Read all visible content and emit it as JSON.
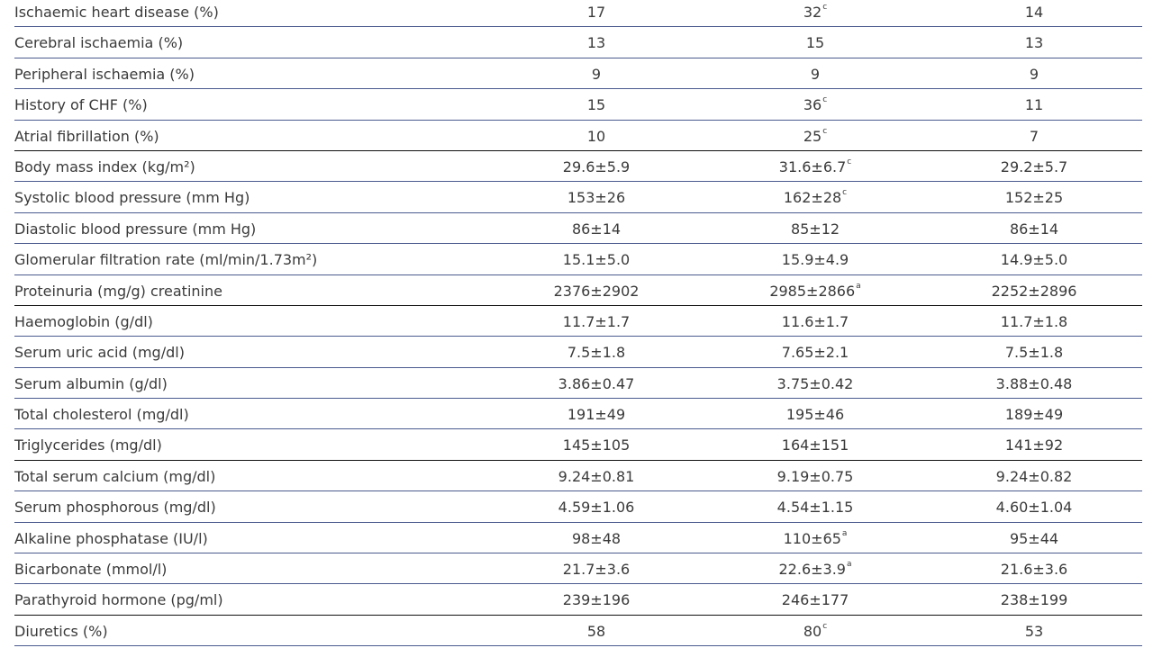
{
  "table": {
    "rows": [
      {
        "label": "Ischaemic heart disease (%)",
        "values": [
          {
            "v": "17"
          },
          {
            "v": "32",
            "sup": "c"
          },
          {
            "v": "14"
          }
        ]
      },
      {
        "label": "Cerebral ischaemia (%)",
        "values": [
          {
            "v": "13"
          },
          {
            "v": "15"
          },
          {
            "v": "13"
          }
        ]
      },
      {
        "label": "Peripheral ischaemia (%)",
        "values": [
          {
            "v": "9"
          },
          {
            "v": "9"
          },
          {
            "v": "9"
          }
        ]
      },
      {
        "label": "History of CHF (%)",
        "values": [
          {
            "v": "15"
          },
          {
            "v": "36",
            "sup": "c"
          },
          {
            "v": "11"
          }
        ]
      },
      {
        "label": "Atrial fibrillation (%)",
        "values": [
          {
            "v": "10"
          },
          {
            "v": "25",
            "sup": "c"
          },
          {
            "v": "7"
          }
        ],
        "dark_rule": true
      },
      {
        "label": "Body mass index (kg/m²)",
        "values": [
          {
            "v": "29.6±5.9"
          },
          {
            "v": "31.6±6.7",
            "sup": "c"
          },
          {
            "v": "29.2±5.7"
          }
        ]
      },
      {
        "label": "Systolic blood pressure (mm Hg)",
        "values": [
          {
            "v": "153±26"
          },
          {
            "v": "162±28",
            "sup": "c"
          },
          {
            "v": "152±25"
          }
        ]
      },
      {
        "label": "Diastolic blood pressure (mm Hg)",
        "values": [
          {
            "v": "86±14"
          },
          {
            "v": "85±12"
          },
          {
            "v": "86±14"
          }
        ]
      },
      {
        "label": "Glomerular filtration rate (ml/min/1.73m²)",
        "values": [
          {
            "v": "15.1±5.0"
          },
          {
            "v": "15.9±4.9"
          },
          {
            "v": "14.9±5.0"
          }
        ]
      },
      {
        "label": "Proteinuria (mg/g) creatinine",
        "values": [
          {
            "v": "2376±2902"
          },
          {
            "v": "2985±2866",
            "sup": "a"
          },
          {
            "v": "2252±2896"
          }
        ],
        "dark_rule": true
      },
      {
        "label": "Haemoglobin (g/dl)",
        "values": [
          {
            "v": "11.7±1.7"
          },
          {
            "v": "11.6±1.7"
          },
          {
            "v": "11.7±1.8"
          }
        ]
      },
      {
        "label": "Serum uric acid (mg/dl)",
        "values": [
          {
            "v": "7.5±1.8"
          },
          {
            "v": "7.65±2.1"
          },
          {
            "v": "7.5±1.8"
          }
        ]
      },
      {
        "label": "Serum albumin (g/dl)",
        "values": [
          {
            "v": "3.86±0.47"
          },
          {
            "v": "3.75±0.42"
          },
          {
            "v": "3.88±0.48"
          }
        ]
      },
      {
        "label": "Total cholesterol (mg/dl)",
        "values": [
          {
            "v": "191±49"
          },
          {
            "v": "195±46"
          },
          {
            "v": "189±49"
          }
        ]
      },
      {
        "label": "Triglycerides (mg/dl)",
        "values": [
          {
            "v": "145±105"
          },
          {
            "v": "164±151"
          },
          {
            "v": "141±92"
          }
        ],
        "dark_rule": true
      },
      {
        "label": "Total serum calcium (mg/dl)",
        "values": [
          {
            "v": "9.24±0.81"
          },
          {
            "v": "9.19±0.75"
          },
          {
            "v": "9.24±0.82"
          }
        ]
      },
      {
        "label": "Serum phosphorous (mg/dl)",
        "values": [
          {
            "v": "4.59±1.06"
          },
          {
            "v": "4.54±1.15"
          },
          {
            "v": "4.60±1.04"
          }
        ]
      },
      {
        "label": "Alkaline phosphatase (IU/l)",
        "values": [
          {
            "v": "98±48"
          },
          {
            "v": "110±65",
            "sup": "a"
          },
          {
            "v": "95±44"
          }
        ]
      },
      {
        "label": "Bicarbonate (mmol/l)",
        "values": [
          {
            "v": "21.7±3.6"
          },
          {
            "v": "22.6±3.9",
            "sup": "a"
          },
          {
            "v": "21.6±3.6"
          }
        ]
      },
      {
        "label": "Parathyroid hormone (pg/ml)",
        "values": [
          {
            "v": "239±196"
          },
          {
            "v": "246±177"
          },
          {
            "v": "238±199"
          }
        ],
        "dark_rule": true
      },
      {
        "label": "Diuretics (%)",
        "values": [
          {
            "v": "58"
          },
          {
            "v": "80",
            "sup": "c"
          },
          {
            "v": "53"
          }
        ]
      }
    ]
  },
  "colors": {
    "rule": "#4a5a8e",
    "rule_dark": "#111111",
    "text": "#3a3a3a"
  }
}
